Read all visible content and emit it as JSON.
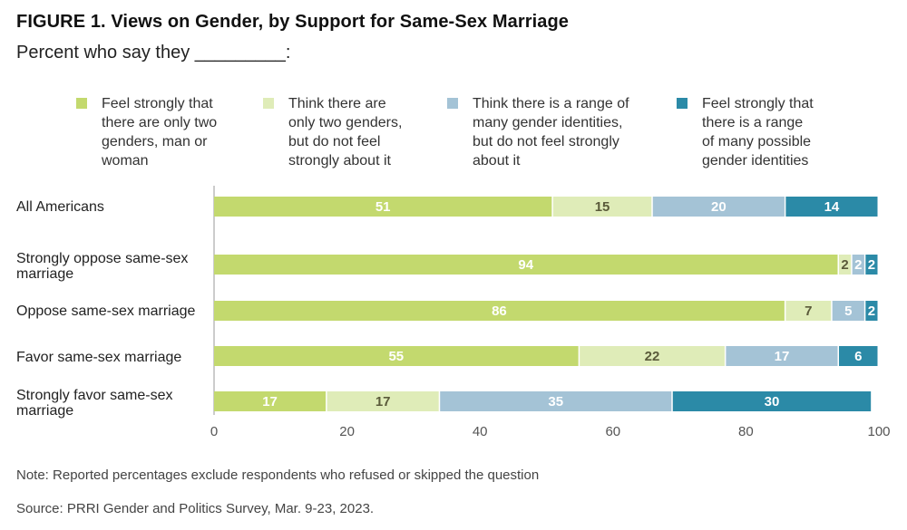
{
  "header": {
    "title": "FIGURE 1.  Views on Gender, by Support for Same-Sex Marriage",
    "subtitle": "Percent who say they _________:"
  },
  "colors": {
    "feel_strongly_two": "#c3d96e",
    "think_two": "#dfecb8",
    "think_range": "#a4c3d6",
    "feel_strongly_range": "#2b8aa7",
    "axis": "#999999",
    "tick_text": "#555555"
  },
  "chart_data": {
    "type": "bar",
    "orientation": "horizontal",
    "stacked": true,
    "title": "FIGURE 1.  Views on Gender, by Support for Same-Sex Marriage",
    "subtitle": "Percent who say they _________:",
    "categories": [
      "All Americans",
      "Strongly oppose same-sex\nmarriage",
      "Oppose same-sex marriage",
      "Favor same-sex marriage",
      "Strongly favor same-sex\nmarriage"
    ],
    "series": [
      {
        "name": "Feel strongly that\nthere are only two\ngenders, man or\nwoman",
        "color_key": "feel_strongly_two",
        "values": [
          51,
          94,
          86,
          55,
          17
        ]
      },
      {
        "name": "Think there are\nonly two genders,\nbut do not feel\nstrongly about it",
        "color_key": "think_two",
        "values": [
          15,
          2,
          7,
          22,
          17
        ]
      },
      {
        "name": "Think there is a range of\nmany gender identities,\nbut do not feel strongly\nabout it",
        "color_key": "think_range",
        "values": [
          20,
          2,
          5,
          17,
          35
        ]
      },
      {
        "name": "Feel strongly that\nthere is a range\nof many possible\ngender identities",
        "color_key": "feel_strongly_range",
        "values": [
          14,
          2,
          2,
          6,
          30
        ]
      }
    ],
    "xlim": [
      0,
      100
    ],
    "xticks": [
      0,
      20,
      40,
      60,
      80,
      100
    ],
    "xlabel": "",
    "ylabel": "",
    "grid": false,
    "legend_position": "top"
  },
  "footer": {
    "note": "Note: Reported percentages exclude respondents who refused or skipped the question",
    "source": "Source: PRRI Gender and Politics Survey, Mar. 9-23, 2023."
  }
}
